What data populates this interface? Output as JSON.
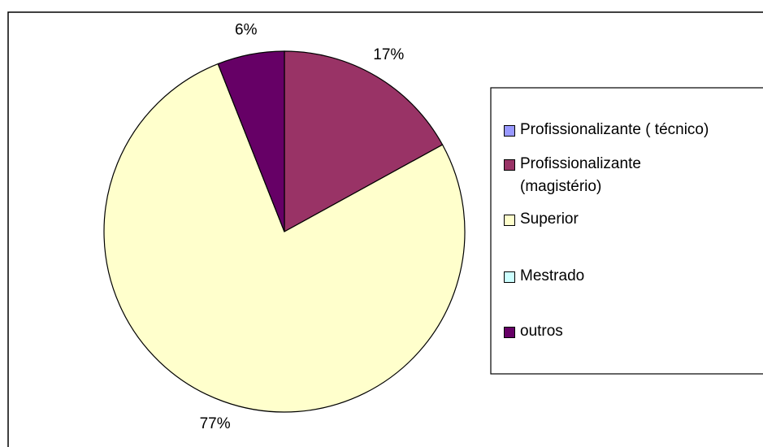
{
  "chart_data": {
    "type": "pie",
    "categories": [
      "Profissionalizante ( técnico)",
      "Profissionalizante (magistério)",
      "Superior",
      "Mestrado",
      "outros"
    ],
    "values": [
      0,
      17,
      77,
      0,
      6
    ],
    "value_labels": [
      null,
      "17%",
      "77%",
      null,
      "6%"
    ],
    "colors": [
      "#9999ff",
      "#993366",
      "#ffffcc",
      "#ccffff",
      "#660066"
    ],
    "legend": "right"
  }
}
